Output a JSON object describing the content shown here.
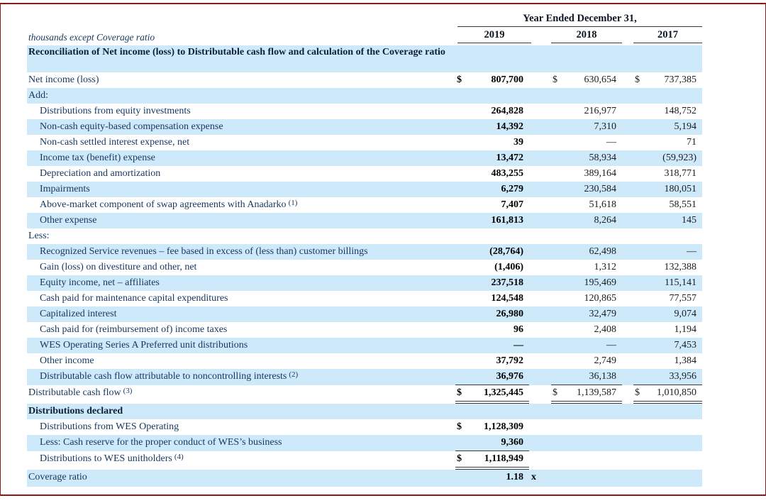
{
  "page": {
    "border_color": "#8a1a1d",
    "shade_color": "#cde9fa"
  },
  "header": {
    "left_note": "thousands except Coverage ratio",
    "span_title": "Year Ended December 31,",
    "years": [
      "2019",
      "2018",
      "2017"
    ]
  },
  "rows": [
    {
      "label": "Reconciliation of Net income (loss) to Distributable cash flow and calculation of the Coverage ratio",
      "bold": true,
      "shade": true,
      "wrap": true
    },
    {
      "label": "Net income (loss)",
      "cur19": "$",
      "v19": "807,700",
      "cur18": "$",
      "v18": "630,654",
      "cur17": "$",
      "v17": "737,385"
    },
    {
      "label": "Add:",
      "shade": true
    },
    {
      "label": "Distributions from equity investments",
      "indent": true,
      "v19": "264,828",
      "v18": "216,977",
      "v17": "148,752"
    },
    {
      "label": "Non-cash equity-based compensation expense",
      "indent": true,
      "shade": true,
      "v19": "14,392",
      "v18": "7,310",
      "v17": "5,194"
    },
    {
      "label": "Non-cash settled interest expense, net",
      "indent": true,
      "v19": "39",
      "v18": "—",
      "v17": "71"
    },
    {
      "label": "Income tax (benefit) expense",
      "indent": true,
      "shade": true,
      "v19": "13,472",
      "v18": "58,934",
      "v17": "(59,923)"
    },
    {
      "label": "Depreciation and amortization",
      "indent": true,
      "v19": "483,255",
      "v18": "389,164",
      "v17": "318,771"
    },
    {
      "label": "Impairments",
      "indent": true,
      "shade": true,
      "v19": "6,279",
      "v18": "230,584",
      "v17": "180,051"
    },
    {
      "label": "Above-market component of swap agreements with Anadarko",
      "sup": "(1)",
      "indent": true,
      "v19": "7,407",
      "v18": "51,618",
      "v17": "58,551"
    },
    {
      "label": "Other expense",
      "indent": true,
      "shade": true,
      "v19": "161,813",
      "v18": "8,264",
      "v17": "145"
    },
    {
      "label": "Less:"
    },
    {
      "label": "Recognized Service revenues – fee based in excess of (less than) customer billings",
      "indent": true,
      "shade": true,
      "v19": "(28,764)",
      "v18": "62,498",
      "v17": "—"
    },
    {
      "label": "Gain (loss) on divestiture and other, net",
      "indent": true,
      "v19": "(1,406)",
      "v18": "1,312",
      "v17": "132,388"
    },
    {
      "label": "Equity income, net – affiliates",
      "indent": true,
      "shade": true,
      "v19": "237,518",
      "v18": "195,469",
      "v17": "115,141"
    },
    {
      "label": "Cash paid for maintenance capital expenditures",
      "indent": true,
      "v19": "124,548",
      "v18": "120,865",
      "v17": "77,557"
    },
    {
      "label": "Capitalized interest",
      "indent": true,
      "shade": true,
      "v19": "26,980",
      "v18": "32,479",
      "v17": "9,074"
    },
    {
      "label": "Cash paid for (reimbursement of) income taxes",
      "indent": true,
      "v19": "96",
      "v18": "2,408",
      "v17": "1,194"
    },
    {
      "label": "WES Operating Series A Preferred unit distributions",
      "indent": true,
      "shade": true,
      "v19": "—",
      "v18": "—",
      "v17": "7,453"
    },
    {
      "label": "Other income",
      "indent": true,
      "v19": "37,792",
      "v18": "2,749",
      "v17": "1,384"
    },
    {
      "label": "Distributable cash flow attributable to noncontrolling interests",
      "sup": "(2)",
      "indent": true,
      "shade": true,
      "v19": "36,976",
      "v18": "36,138",
      "v17": "33,956",
      "ul19": "single",
      "ul18": "single",
      "ul17": "single"
    },
    {
      "label": "Distributable cash flow",
      "sup": "(3)",
      "cur19": "$",
      "v19": "1,325,445",
      "cur18": "$",
      "v18": "1,139,587",
      "cur17": "$",
      "v17": "1,010,850",
      "ul19": "double",
      "ul18": "double",
      "ul17": "double",
      "tall": true
    },
    {
      "label": "Distributions declared",
      "bold": true,
      "shade": true
    },
    {
      "label": "Distributions from WES Operating",
      "indent": true,
      "cur19": "$",
      "v19": "1,128,309"
    },
    {
      "label": "Less: Cash reserve for the proper conduct of WES’s business",
      "indent": true,
      "shade": true,
      "v19": "9,360",
      "ul19": "single"
    },
    {
      "label": "Distributions to WES unitholders",
      "sup": "(4)",
      "indent": true,
      "cur19": "$",
      "v19": "1,118,949",
      "ul19": "double",
      "tall": true
    },
    {
      "label": "Coverage ratio",
      "shade": true,
      "v19": "1.18",
      "sfx": "x",
      "tall": true
    }
  ]
}
